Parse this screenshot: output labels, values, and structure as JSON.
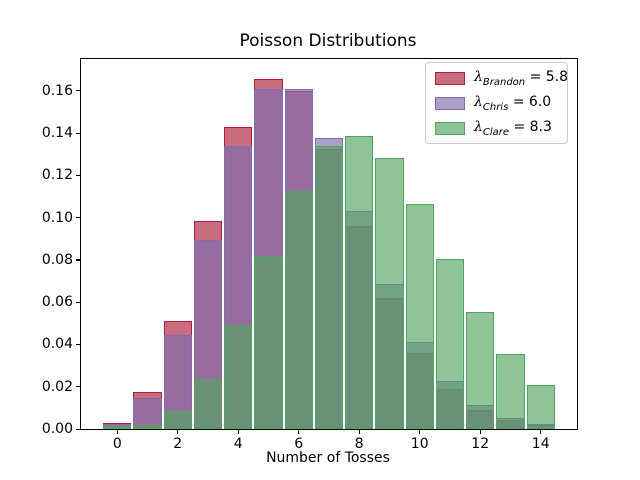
{
  "title": "Poisson Distributions",
  "axes": {
    "xlabel": "Number of Tosses",
    "xtick_labels": [
      "0",
      "2",
      "4",
      "6",
      "8",
      "10",
      "12",
      "14"
    ],
    "ytick_labels": [
      "0.00",
      "0.02",
      "0.04",
      "0.06",
      "0.08",
      "0.10",
      "0.12",
      "0.14",
      "0.16"
    ]
  },
  "legend": {
    "entries": [
      {
        "symbol": "λ",
        "sub": "Brandon",
        "equals": " = ",
        "value": "5.8",
        "color": "#ad1d3c"
      },
      {
        "symbol": "λ",
        "sub": "Chris",
        "equals": " = ",
        "value": "6.0",
        "color": "#7e6db0"
      },
      {
        "symbol": "λ",
        "sub": "Clare",
        "equals": " = ",
        "value": "8.3",
        "color": "#53a463"
      }
    ]
  },
  "chart_data": {
    "type": "bar",
    "title": "Poisson Distributions",
    "xlabel": "Number of Tosses",
    "ylabel": "",
    "x": [
      0,
      1,
      2,
      3,
      4,
      5,
      6,
      7,
      8,
      9,
      10,
      11,
      12,
      13,
      14
    ],
    "series": [
      {
        "name": "Brandon",
        "lambda": 5.8,
        "color": "#ad1d3c",
        "values": [
          0.003,
          0.0176,
          0.0509,
          0.0985,
          0.1428,
          0.1656,
          0.1601,
          0.1326,
          0.0962,
          0.062,
          0.0359,
          0.019,
          0.0092,
          0.0041,
          0.0017
        ]
      },
      {
        "name": "Chris",
        "lambda": 6.0,
        "color": "#7e6db0",
        "values": [
          0.0025,
          0.0149,
          0.0446,
          0.0892,
          0.1339,
          0.1606,
          0.1606,
          0.1377,
          0.1033,
          0.0688,
          0.0413,
          0.0225,
          0.0113,
          0.0052,
          0.0022
        ]
      },
      {
        "name": "Clare",
        "lambda": 8.3,
        "color": "#53a463",
        "values": [
          0.0002,
          0.0021,
          0.0086,
          0.0237,
          0.0491,
          0.0816,
          0.1128,
          0.1338,
          0.1388,
          0.128,
          0.1063,
          0.0802,
          0.0554,
          0.0354,
          0.021
        ]
      }
    ],
    "xticks": [
      0,
      2,
      4,
      6,
      8,
      10,
      12,
      14
    ],
    "yticks": [
      0.0,
      0.02,
      0.04,
      0.06,
      0.08,
      0.1,
      0.12,
      0.14,
      0.16
    ],
    "xlim": [
      -1.2,
      15.2
    ],
    "ylim": [
      0,
      0.175
    ],
    "bar_width": 0.93,
    "fill_alpha": 0.65,
    "grid": false,
    "legend_position": "upper right"
  }
}
